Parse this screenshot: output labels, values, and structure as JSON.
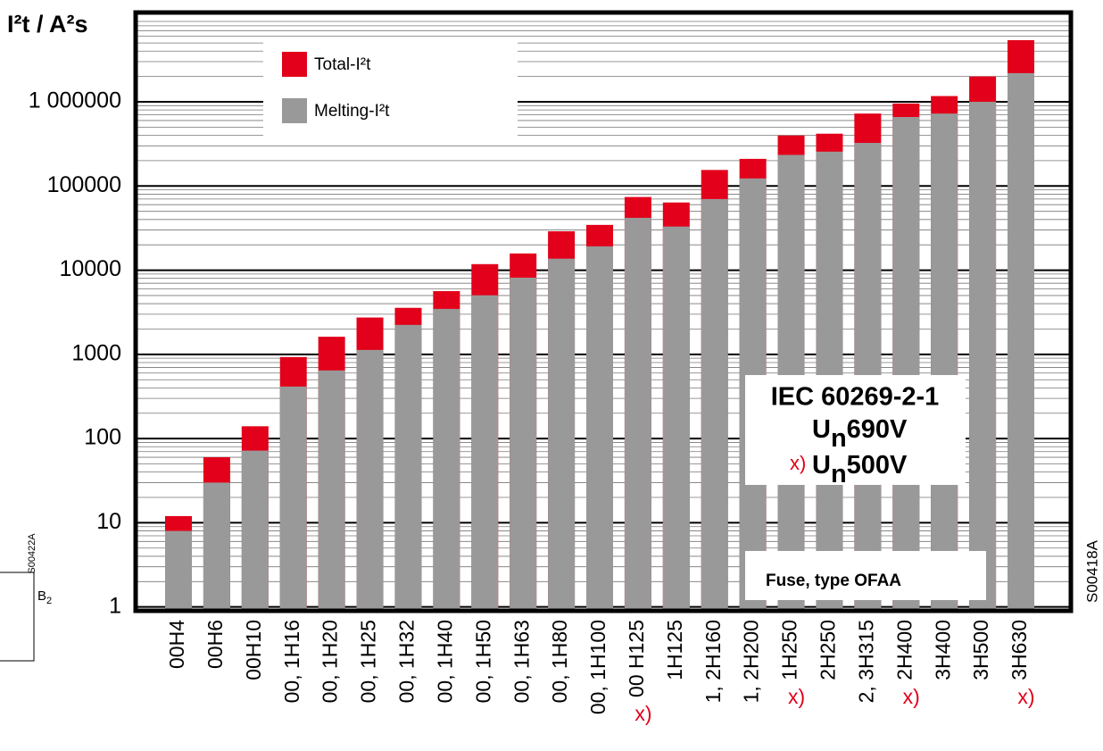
{
  "chart_data": {
    "type": "bar",
    "title": "I²t / A²s",
    "log_scale": true,
    "grid": true,
    "categories": [
      "00H4",
      "00H6",
      "00H10",
      "00, 1H16",
      "00, 1H20",
      "00, 1H25",
      "00, 1H32",
      "00, 1H40",
      "00, 1H50",
      "00, 1H63",
      "00, 1H80",
      "00, 1H100",
      "00 H125",
      "1H125",
      "1, 2H160",
      "1, 2H200",
      "1H250",
      "2H250",
      "2, 3H315",
      "2H400",
      "3H400",
      "3H500",
      "3H630"
    ],
    "category_notes": [
      null,
      null,
      null,
      null,
      null,
      null,
      null,
      null,
      null,
      null,
      null,
      null,
      "x)",
      null,
      null,
      null,
      "x)",
      null,
      null,
      "x)",
      null,
      null,
      "x)"
    ],
    "series": [
      {
        "name": "Total-I²t",
        "color": "#e2001a",
        "values": [
          12,
          60,
          140,
          930,
          1620,
          2740,
          3570,
          5640,
          11800,
          15800,
          29000,
          34500,
          74000,
          63700,
          155000,
          210000,
          398000,
          418000,
          725000,
          955000,
          1170000,
          2000000,
          5400000
        ]
      },
      {
        "name": "Melting-I²t",
        "color": "#999999",
        "values": [
          8,
          30,
          72,
          415,
          645,
          1130,
          2240,
          3470,
          5030,
          8150,
          13700,
          19200,
          41900,
          33000,
          70000,
          123000,
          234000,
          256000,
          325000,
          660000,
          725000,
          1000000,
          2190000
        ]
      }
    ],
    "ylim": [
      0.9,
      11500000
    ],
    "yticks": [
      1,
      10,
      100,
      1000,
      10000,
      100000,
      {
        "value": 1000000,
        "label": "1 000000"
      }
    ],
    "annotation": {
      "standard": "IEC 60269-2-1",
      "line_1": {
        "symbol": "U",
        "sub": "n",
        "value": "690V"
      },
      "line_2": {
        "note": "x)",
        "symbol": "U",
        "sub": "n",
        "value": "500V"
      },
      "fuse": "Fuse, type OFAA"
    },
    "figure_code": "S00418A",
    "fragments": {
      "code": "S00422A",
      "label": "B",
      "label_sub": "2"
    }
  }
}
